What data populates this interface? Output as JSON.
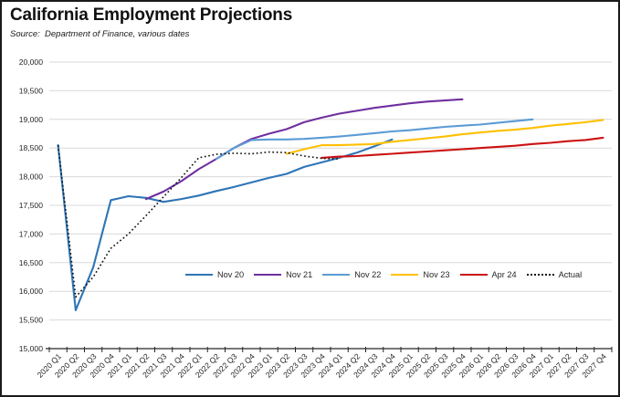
{
  "header": {
    "title": "California Employment Projections",
    "source": "Source:  Department of Finance, various dates"
  },
  "chart_data": {
    "type": "line",
    "title": "California Employment Projections",
    "xlabel": "",
    "ylabel": "",
    "grid": true,
    "legend_position": "inside-bottom-center",
    "y_axis": {
      "min": 15000,
      "max": 20000,
      "step": 500,
      "tick_labels": [
        "15,000",
        "15,500",
        "16,000",
        "16,500",
        "17,000",
        "17,500",
        "18,000",
        "18,500",
        "19,000",
        "19,500",
        "20,000"
      ]
    },
    "categories": [
      "2020 Q1",
      "2020 Q2",
      "2020 Q3",
      "2020 Q4",
      "2021 Q1",
      "2021 Q2",
      "2021 Q3",
      "2021 Q4",
      "2022 Q1",
      "2022 Q2",
      "2022 Q3",
      "2022 Q4",
      "2023 Q1",
      "2023 Q2",
      "2023 Q3",
      "2023 Q4",
      "2024 Q1",
      "2024 Q2",
      "2024 Q3",
      "2024 Q4",
      "2025 Q1",
      "2025 Q2",
      "2025 Q3",
      "2025 Q4",
      "2026 Q1",
      "2026 Q2",
      "2026 Q3",
      "2026 Q4",
      "2027 Q1",
      "2027 Q2",
      "2027 Q3",
      "2027 Q4"
    ],
    "series": [
      {
        "name": "Nov 20",
        "color": "#2E75B6",
        "style": "solid",
        "start_index": 0,
        "values": [
          18550,
          15670,
          16420,
          17590,
          17660,
          17630,
          17560,
          17610,
          17670,
          17750,
          17820,
          17900,
          17980,
          18050,
          18170,
          18250,
          18330,
          18420,
          18530,
          18650
        ]
      },
      {
        "name": "Nov 21",
        "color": "#7030A0",
        "style": "solid",
        "start_index": 5,
        "values": [
          17610,
          17740,
          17920,
          18130,
          18310,
          18500,
          18660,
          18750,
          18830,
          18950,
          19030,
          19100,
          19150,
          19200,
          19240,
          19280,
          19310,
          19330,
          19350
        ]
      },
      {
        "name": "Nov 22",
        "color": "#5B9BD5",
        "style": "solid",
        "start_index": 9,
        "values": [
          18310,
          18500,
          18640,
          18650,
          18650,
          18660,
          18680,
          18700,
          18730,
          18760,
          18790,
          18810,
          18840,
          18870,
          18890,
          18910,
          18940,
          18970,
          19000
        ]
      },
      {
        "name": "Nov 23",
        "color": "#FFC000",
        "style": "solid",
        "start_index": 13,
        "values": [
          18400,
          18480,
          18550,
          18550,
          18560,
          18570,
          18610,
          18640,
          18670,
          18700,
          18740,
          18770,
          18800,
          18820,
          18850,
          18890,
          18920,
          18950,
          18990
        ]
      },
      {
        "name": "Apr 24",
        "color": "#CC1111",
        "style": "solid",
        "start_index": 15,
        "values": [
          18330,
          18350,
          18360,
          18380,
          18400,
          18420,
          18440,
          18460,
          18480,
          18500,
          18520,
          18540,
          18570,
          18590,
          18620,
          18640,
          18680
        ]
      },
      {
        "name": "Actual",
        "color": "#111111",
        "style": "dotted",
        "start_index": 0,
        "values": [
          18550,
          15900,
          16250,
          16750,
          17000,
          17320,
          17650,
          17980,
          18330,
          18390,
          18410,
          18400,
          18430,
          18420,
          18360,
          18320,
          18310
        ]
      }
    ],
    "colors": {
      "gridline": "#D9D9D9",
      "axis": "#262626",
      "tick_text": "#262626"
    }
  }
}
